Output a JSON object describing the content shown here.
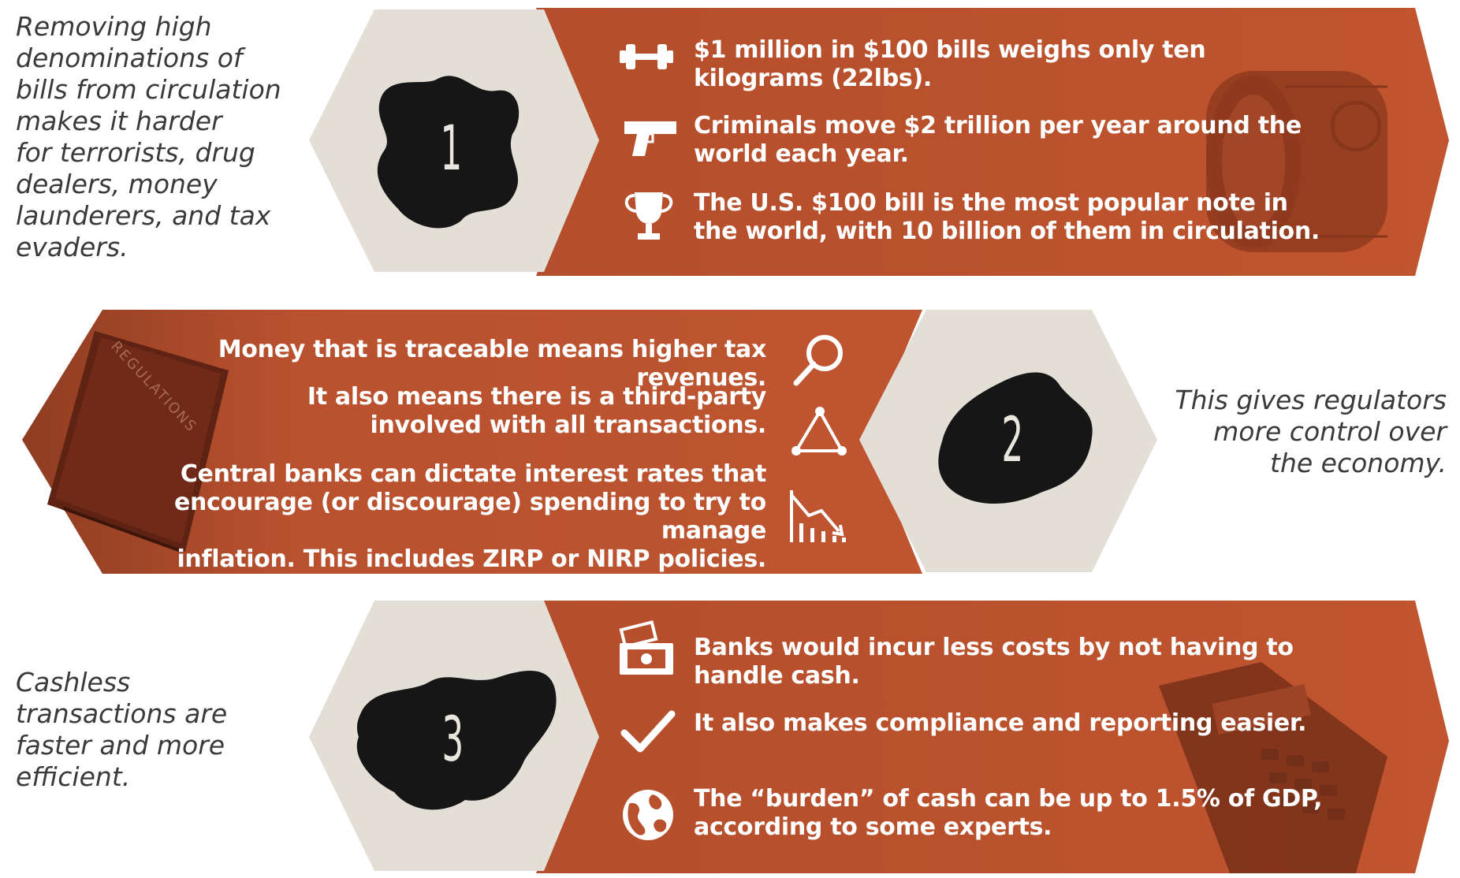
{
  "colors": {
    "accent": "#b9512f",
    "accent_dark": "#8e3a1f",
    "hexagon": "#e3dfd6",
    "caption_text": "#3a3a3a",
    "ink": "#151515"
  },
  "section1": {
    "number": "1",
    "caption": "Removing high\ndenominations of\nbills from circulation\nmakes it harder\nfor terrorists, drug\ndealers, money\nlaunderers, and tax\nevaders.",
    "facts": [
      {
        "icon": "dumbbell-icon",
        "text": "$1 million in $100 bills weighs only ten\nkilograms (22lbs)."
      },
      {
        "icon": "gun-icon",
        "text": "Criminals move $2 trillion per year around the\nworld each year."
      },
      {
        "icon": "trophy-icon",
        "text": "The U.S. $100 bill is the most popular note in\nthe world, with 10 billion of them in circulation."
      }
    ],
    "image": "money-roll-image"
  },
  "section2": {
    "number": "2",
    "caption": "This gives regulators\nmore control over\nthe economy.",
    "book_label": "REGULATIONS",
    "facts": [
      {
        "icon": "magnifier-icon",
        "text": "Money that is traceable means higher tax revenues."
      },
      {
        "icon": "network-icon",
        "text": "It also means there is a third-party\ninvolved with all transactions."
      },
      {
        "icon": "declining-chart-icon",
        "text": "Central banks can dictate interest rates that\nencourage (or discourage) spending to try to manage\ninflation. This includes ZIRP or NIRP policies."
      }
    ],
    "image": "regulations-book-image"
  },
  "section3": {
    "number": "3",
    "caption": "Cashless\ntransactions are\nfaster and more\nefficient.",
    "facts": [
      {
        "icon": "cash-register-icon",
        "text": "Banks would incur less costs by not having to\nhandle cash."
      },
      {
        "icon": "checkmark-icon",
        "text": "It also makes compliance and reporting easier."
      },
      {
        "icon": "globe-icon",
        "text": "The “burden” of cash can be up to 1.5% of GDP,\naccording to some experts."
      }
    ],
    "image": "card-terminal-image"
  }
}
